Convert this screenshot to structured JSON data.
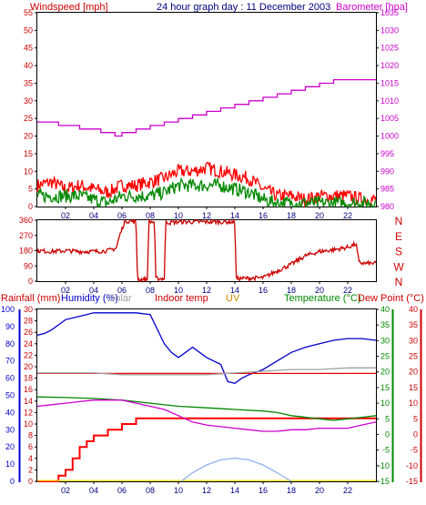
{
  "header": {
    "left_title": "Windspeed [mph]",
    "center_title": "24 hour graph day : 11 December 2003",
    "right_title": "Barometer [hpa]"
  },
  "chart_data": [
    {
      "type": "line",
      "title": "24 hour graph day : 11 December 2003",
      "x_ticks": [
        "02",
        "04",
        "06",
        "08",
        "10",
        "12",
        "14",
        "16",
        "18",
        "20",
        "22"
      ],
      "xlim": [
        0,
        24
      ],
      "left_axis": {
        "label": "Windspeed [mph]",
        "ylim": [
          0,
          55
        ],
        "ticks": [
          0,
          5,
          10,
          15,
          20,
          25,
          30,
          35,
          40,
          45,
          50,
          55
        ],
        "color": "#cc0000"
      },
      "right_axis": {
        "label": "Barometer [hpa]",
        "ylim": [
          980,
          1035
        ],
        "ticks": [
          980,
          985,
          990,
          995,
          1000,
          1005,
          1010,
          1015,
          1020,
          1025,
          1030,
          1035
        ],
        "color": "#cc00cc"
      },
      "series": [
        {
          "name": "Barometer [hpa]",
          "axis": "right",
          "color": "#cc00cc",
          "style": "step",
          "x": [
            0,
            1.5,
            3,
            4.5,
            5.5,
            6,
            7,
            8,
            9,
            10,
            11,
            12,
            13,
            14,
            15,
            16,
            17,
            18,
            19,
            20,
            21,
            24
          ],
          "y": [
            1004,
            1003,
            1002,
            1001,
            1000,
            1001,
            1002,
            1003,
            1004,
            1005,
            1006,
            1007,
            1008,
            1009,
            1010,
            1011,
            1012,
            1013,
            1014,
            1015,
            1016,
            1016
          ]
        },
        {
          "name": "Wind gust",
          "axis": "left",
          "color": "#ff0000",
          "style": "noisy",
          "x": [
            0,
            1,
            2,
            3,
            4,
            5,
            6,
            7,
            8,
            9,
            10,
            11,
            12,
            13,
            14,
            15,
            16,
            17,
            18,
            19,
            20,
            21,
            22,
            23,
            24
          ],
          "y": [
            6,
            7,
            5,
            6,
            5,
            4,
            6,
            6,
            7,
            8,
            10,
            10,
            11,
            10,
            9,
            8,
            5,
            3,
            3,
            2,
            3,
            3,
            3,
            2,
            2
          ]
        },
        {
          "name": "Average windspeed",
          "axis": "left",
          "color": "#008800",
          "style": "noisy",
          "x": [
            0,
            1,
            2,
            3,
            4,
            5,
            6,
            7,
            8,
            9,
            10,
            11,
            12,
            13,
            14,
            15,
            16,
            17,
            18,
            19,
            20,
            21,
            22,
            23,
            24
          ],
          "y": [
            3,
            3,
            3,
            3,
            2,
            1,
            3,
            3,
            3,
            4,
            6,
            6,
            6,
            6,
            5,
            4,
            2,
            1,
            1,
            1,
            1,
            1,
            1,
            1,
            1
          ]
        }
      ]
    },
    {
      "type": "line",
      "title": "",
      "x_ticks": [
        "02",
        "04",
        "06",
        "08",
        "10",
        "12",
        "14",
        "16",
        "18",
        "20",
        "22"
      ],
      "xlim": [
        0,
        24
      ],
      "left_axis": {
        "label": "",
        "ylim": [
          0,
          360
        ],
        "ticks": [
          0,
          90,
          180,
          270,
          360
        ],
        "color": "#cc0000"
      },
      "right_axis": {
        "label": "",
        "ticks": [
          "N",
          "W",
          "S",
          "E",
          "N"
        ],
        "color": "#cc0000"
      },
      "series": [
        {
          "name": "Wind direction",
          "axis": "left",
          "color": "#cc0000",
          "style": "noisy",
          "x": [
            0,
            1,
            2,
            3,
            4,
            5,
            5.6,
            5.8,
            6.2,
            6.6,
            7.0,
            7.1,
            7.8,
            7.9,
            8.3,
            8.4,
            9.0,
            9.1,
            9.4,
            10.0,
            12.0,
            14.0,
            14.1,
            16.0,
            17.0,
            18.0,
            19.0,
            20.0,
            21.0,
            22.0,
            22.6,
            22.8,
            23.2
          ],
          "y": [
            180,
            175,
            180,
            175,
            175,
            180,
            195,
            260,
            355,
            355,
            350,
            10,
            10,
            350,
            350,
            15,
            15,
            350,
            345,
            350,
            350,
            350,
            15,
            20,
            60,
            100,
            150,
            175,
            185,
            200,
            220,
            110,
            105
          ]
        }
      ]
    },
    {
      "type": "line",
      "title": "",
      "x_ticks": [
        "02",
        "04",
        "06",
        "08",
        "10",
        "12",
        "14",
        "16",
        "18",
        "20",
        "22"
      ],
      "xlim": [
        0,
        24
      ],
      "legend": [
        "Rainfall (mm)",
        "Humidity (%)",
        "Solar",
        "Indoor temp",
        "UV",
        "Temperature (°C)",
        "Dew Point (°C)"
      ],
      "axes": {
        "humidity": {
          "label": "Humidity (%)",
          "ylim": [
            0,
            100
          ],
          "ticks": [
            0,
            10,
            20,
            30,
            40,
            50,
            60,
            70,
            80,
            90,
            100
          ],
          "color": "#0000cc"
        },
        "rain": {
          "label": "Rainfall (mm)",
          "ylim": [
            0,
            30
          ],
          "ticks": [
            0,
            2,
            4,
            6,
            8,
            10,
            12,
            14,
            16,
            18,
            20,
            22,
            24,
            26,
            28,
            30
          ],
          "color": "#cc0000"
        },
        "temperature": {
          "label": "Temperature (°C)",
          "ylim": [
            -15,
            40
          ],
          "ticks": [
            -15,
            -10,
            -5,
            0,
            5,
            10,
            15,
            20,
            25,
            30,
            35,
            40
          ],
          "color": "#008800"
        },
        "dewpoint": {
          "label": "Dew Point (°C)",
          "ylim": [
            -15,
            40
          ],
          "ticks": [
            -15,
            -10,
            -5,
            0,
            5,
            10,
            15,
            20,
            25,
            30,
            35,
            40
          ],
          "color": "#cc0000"
        }
      },
      "series": [
        {
          "name": "Humidity (%)",
          "axis": "humidity",
          "color": "#0000cc",
          "style": "line",
          "x": [
            0,
            0.5,
            1,
            1.5,
            2,
            3,
            4,
            5,
            6,
            7,
            8,
            9,
            9.5,
            10,
            10.5,
            11,
            12,
            13,
            13.5,
            14,
            14.5,
            15,
            16,
            17,
            18,
            19,
            20,
            21,
            22,
            23,
            24
          ],
          "y": [
            85,
            86,
            88,
            91,
            94,
            96,
            98,
            98,
            98,
            98,
            97,
            80,
            75,
            72,
            75,
            78,
            72,
            68,
            58,
            57,
            60,
            62,
            65,
            70,
            75,
            78,
            80,
            82,
            83,
            83,
            82
          ]
        },
        {
          "name": "Rainfall (mm)",
          "axis": "rain",
          "color": "#ff0000",
          "style": "step",
          "x": [
            0,
            1,
            1.5,
            2,
            2.5,
            3,
            3.5,
            4,
            5,
            6,
            7,
            24
          ],
          "y": [
            0,
            0,
            1,
            2,
            4,
            6,
            7,
            8,
            9,
            10,
            11,
            11
          ]
        },
        {
          "name": "Indoor temp",
          "axis": "temperature",
          "color": "#ee0000",
          "style": "line",
          "x": [
            0,
            2,
            4,
            6,
            8,
            10,
            12,
            14,
            16,
            18,
            20,
            22,
            24
          ],
          "y": [
            19.5,
            19.5,
            19.5,
            19.5,
            19.5,
            19.5,
            19.5,
            19.5,
            19.5,
            19.5,
            19.5,
            19.5,
            19.5
          ]
        },
        {
          "name": "Temperature (°C)",
          "axis": "temperature",
          "color": "#008800",
          "style": "line",
          "x": [
            0,
            2,
            4,
            6,
            8,
            10,
            12,
            14,
            16,
            17,
            18,
            20,
            21,
            22,
            23,
            24
          ],
          "y": [
            12,
            11.8,
            11.5,
            11,
            10,
            9,
            8.5,
            8,
            7.5,
            7,
            6,
            5,
            4.5,
            5,
            5.5,
            6
          ]
        },
        {
          "name": "Dew Point (°C)",
          "axis": "dewpoint",
          "color": "#cc00cc",
          "style": "line",
          "x": [
            0,
            1,
            2,
            3,
            4,
            6,
            7,
            8,
            9,
            10,
            11,
            12,
            13,
            14,
            15,
            16,
            17,
            18,
            19,
            20,
            21,
            22,
            23,
            24
          ],
          "y": [
            9,
            9.5,
            10,
            10.5,
            11,
            11,
            10,
            9,
            8,
            6,
            4,
            3,
            2.5,
            2,
            1.5,
            1,
            1,
            1.5,
            1.5,
            2,
            2,
            2,
            3,
            4
          ]
        },
        {
          "name": "Solar",
          "axis": "humidity",
          "color": "#a0a0a0",
          "style": "line",
          "x": [
            0,
            2,
            4,
            6,
            8,
            10,
            12,
            14,
            16,
            18,
            20,
            22,
            24
          ],
          "y": [
            63,
            63,
            63,
            62,
            62,
            62,
            62,
            63,
            64,
            65,
            65,
            66,
            66
          ]
        },
        {
          "name": "UV",
          "axis": "rain",
          "color": "#ffdd00",
          "style": "line",
          "x": [
            0,
            24
          ],
          "y": [
            0.15,
            0.15
          ]
        },
        {
          "name": "",
          "axis": "humidity",
          "color": "#8fb0f0",
          "style": "curve",
          "x": [
            10.2,
            11,
            12,
            13,
            14,
            15,
            16,
            17,
            18
          ],
          "y": [
            0,
            5,
            9.5,
            12.5,
            13.5,
            12.5,
            9.5,
            5,
            0
          ]
        }
      ]
    }
  ]
}
